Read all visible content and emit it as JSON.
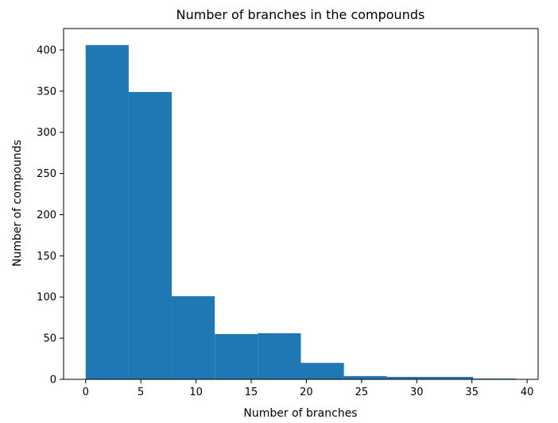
{
  "chart_data": {
    "type": "bar",
    "title": "Number of branches in the compounds",
    "xlabel": "Number of branches",
    "ylabel": "Number of compounds",
    "bin_edges": [
      0,
      3.9,
      7.8,
      11.7,
      15.6,
      19.5,
      23.4,
      27.3,
      31.2,
      35.1,
      39
    ],
    "values": [
      406,
      349,
      101,
      55,
      56,
      20,
      4,
      3,
      3,
      1
    ],
    "xlim": [
      -2.0,
      41.0
    ],
    "ylim": [
      0,
      426
    ],
    "xticks": [
      0,
      5,
      10,
      15,
      20,
      25,
      30,
      35,
      40
    ],
    "yticks": [
      0,
      50,
      100,
      150,
      200,
      250,
      300,
      350,
      400
    ],
    "bar_color": "#1f77b4",
    "grid": false
  }
}
